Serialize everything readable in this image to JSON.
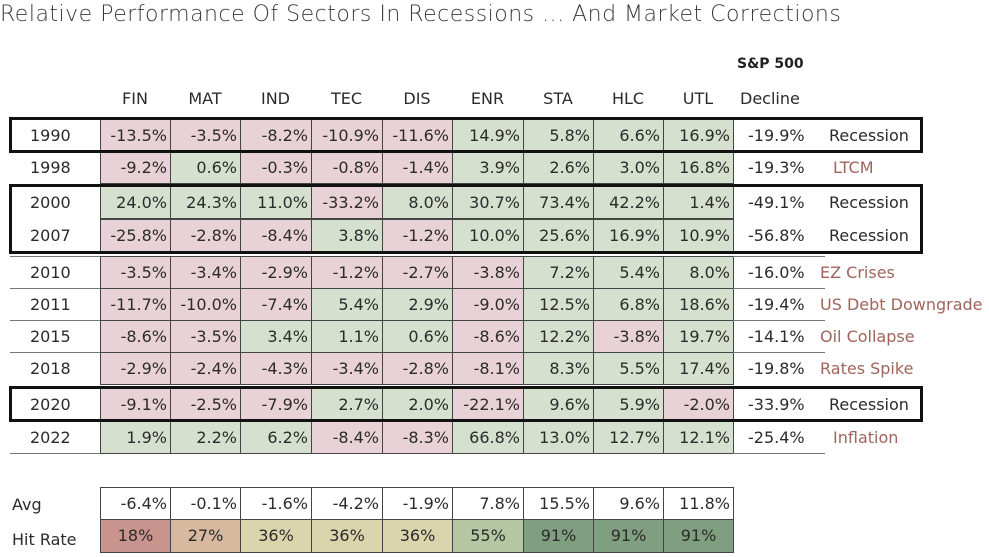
{
  "title": "Relative Performance Of Sectors In Recessions ... And Market Corrections",
  "colors": {
    "negative": "#e8d2d8",
    "positive": "#d5e0cf",
    "event_recession": "#2b2b2b",
    "event_correction": "#a0645a"
  },
  "header": {
    "sp500_line1": "S&P 500",
    "sp500_line2": "Decline"
  },
  "chart_data": {
    "type": "table",
    "title": "Relative Performance Of Sectors In Recessions ... And Market Corrections",
    "columns": [
      "FIN",
      "MAT",
      "IND",
      "TEC",
      "DIS",
      "ENR",
      "STA",
      "HLC",
      "UTL"
    ],
    "rows": [
      {
        "year": "1990",
        "values": [
          "-13.5%",
          "-3.5%",
          "-8.2%",
          "-10.9%",
          "-11.6%",
          "14.9%",
          "5.8%",
          "6.6%",
          "16.9%"
        ],
        "decline": "-19.9%",
        "event": "Recession",
        "recession": true
      },
      {
        "year": "1998",
        "values": [
          "-9.2%",
          "0.6%",
          "-0.3%",
          "-0.8%",
          "-1.4%",
          "3.9%",
          "2.6%",
          "3.0%",
          "16.8%"
        ],
        "decline": "-19.3%",
        "event": "LTCM",
        "recession": false
      },
      {
        "year": "2000",
        "values": [
          "24.0%",
          "24.3%",
          "11.0%",
          "-33.2%",
          "8.0%",
          "30.7%",
          "73.4%",
          "42.2%",
          "1.4%"
        ],
        "decline": "-49.1%",
        "event": "Recession",
        "recession": true
      },
      {
        "year": "2007",
        "values": [
          "-25.8%",
          "-2.8%",
          "-8.4%",
          "3.8%",
          "-1.2%",
          "10.0%",
          "25.6%",
          "16.9%",
          "10.9%"
        ],
        "decline": "-56.8%",
        "event": "Recession",
        "recession": true
      },
      {
        "year": "2010",
        "values": [
          "-3.5%",
          "-3.4%",
          "-2.9%",
          "-1.2%",
          "-2.7%",
          "-3.8%",
          "7.2%",
          "5.4%",
          "8.0%"
        ],
        "decline": "-16.0%",
        "event": "EZ Crises",
        "recession": false
      },
      {
        "year": "2011",
        "values": [
          "-11.7%",
          "-10.0%",
          "-7.4%",
          "5.4%",
          "2.9%",
          "-9.0%",
          "12.5%",
          "6.8%",
          "18.6%"
        ],
        "decline": "-19.4%",
        "event": "US Debt Downgrade",
        "recession": false
      },
      {
        "year": "2015",
        "values": [
          "-8.6%",
          "-3.5%",
          "3.4%",
          "1.1%",
          "0.6%",
          "-8.6%",
          "12.2%",
          "-3.8%",
          "19.7%"
        ],
        "decline": "-14.1%",
        "event": "Oil Collapse",
        "recession": false
      },
      {
        "year": "2018",
        "values": [
          "-2.9%",
          "-2.4%",
          "-4.3%",
          "-3.4%",
          "-2.8%",
          "-8.1%",
          "8.3%",
          "5.5%",
          "17.4%"
        ],
        "decline": "-19.8%",
        "event": "Rates Spike",
        "recession": false
      },
      {
        "year": "2020",
        "values": [
          "-9.1%",
          "-2.5%",
          "-7.9%",
          "2.7%",
          "2.0%",
          "-22.1%",
          "9.6%",
          "5.9%",
          "-2.0%"
        ],
        "decline": "-33.9%",
        "event": "Recession",
        "recession": true
      },
      {
        "year": "2022",
        "values": [
          "1.9%",
          "2.2%",
          "6.2%",
          "-8.4%",
          "-8.3%",
          "66.8%",
          "13.0%",
          "12.7%",
          "12.1%"
        ],
        "decline": "-25.4%",
        "event": "Inflation",
        "recession": false
      }
    ],
    "avg_label": "Avg",
    "avg": [
      "-6.4%",
      "-0.1%",
      "-1.6%",
      "-4.2%",
      "-1.9%",
      "7.8%",
      "15.5%",
      "9.6%",
      "11.8%"
    ],
    "hit_label": "Hit Rate",
    "hit_rate": [
      "18%",
      "27%",
      "36%",
      "36%",
      "36%",
      "55%",
      "91%",
      "91%",
      "91%"
    ],
    "hit_colors": [
      "#c9948e",
      "#d7b99f",
      "#dad5ac",
      "#dad5ac",
      "#dad5ac",
      "#b5c7a2",
      "#809f80",
      "#809f80",
      "#809f80"
    ]
  }
}
